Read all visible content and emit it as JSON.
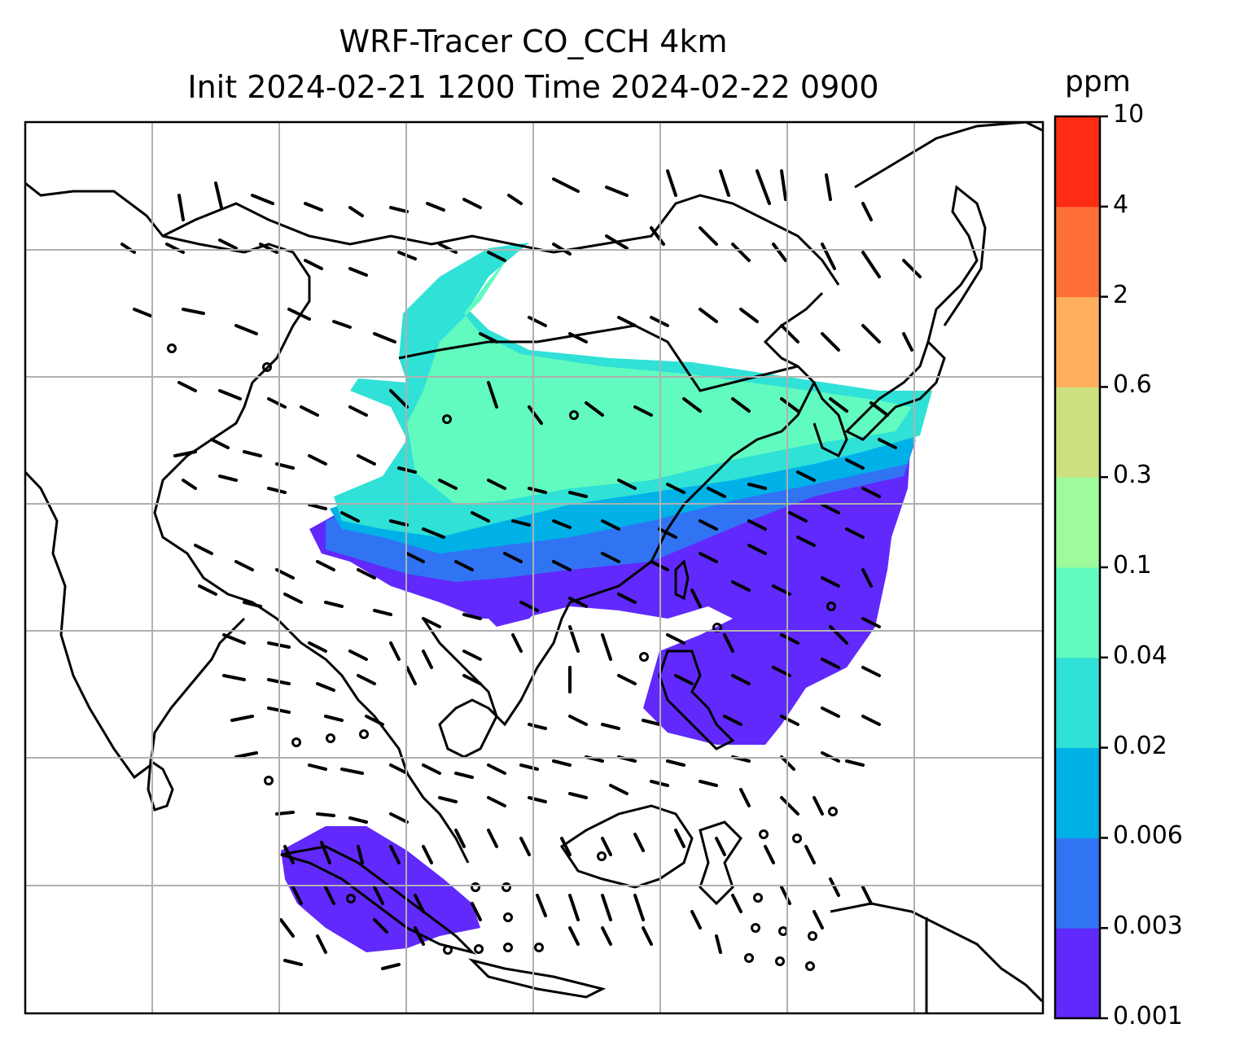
{
  "title": {
    "line1": "WRF-Tracer CO_CCH 4km",
    "line2": "Init 2024-02-21 1200 Time 2024-02-22 0900"
  },
  "colorbar": {
    "unit": "ppm",
    "levels": [
      "0.001",
      "0.003",
      "0.006",
      "0.02",
      "0.04",
      "0.1",
      "0.3",
      "0.6",
      "2",
      "4",
      "10"
    ],
    "colors": [
      "#6129fb",
      "#3074f4",
      "#00b1e8",
      "#2fe1d6",
      "#62fbbf",
      "#9dfb9b",
      "#cde080",
      "#ffaf5e",
      "#ff7038",
      "#ff2c14"
    ]
  },
  "map": {
    "tracer_field_colors": {
      "lowest": "#6129fb",
      "low": "#3074f4",
      "mid_low": "#00b1e8",
      "mid": "#2fe1d6",
      "mid_high": "#62fbbf"
    },
    "gridline_color": "#b0b0b0",
    "coastline_color": "#000000",
    "wind_barb_color": "#000000"
  }
}
